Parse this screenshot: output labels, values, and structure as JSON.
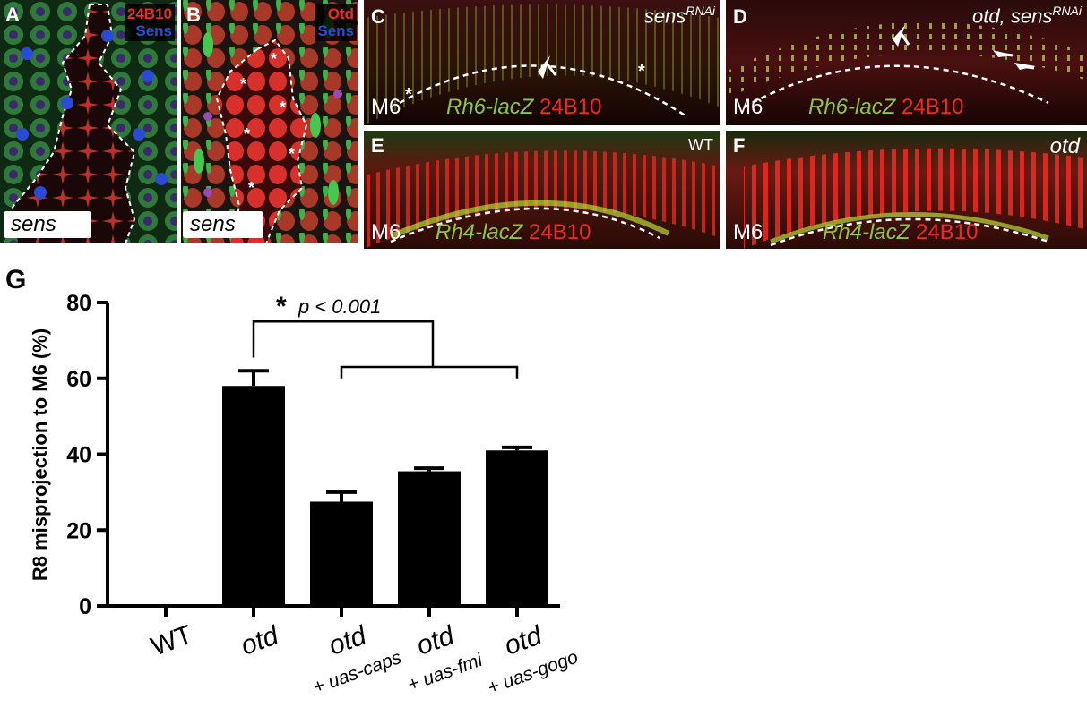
{
  "panels": {
    "A": {
      "letter": "A",
      "stain_red": "24B10",
      "stain_blue": "Sens",
      "clone": "sens"
    },
    "B": {
      "letter": "B",
      "stain_red": "Otd",
      "stain_blue": "Sens",
      "clone": "sens",
      "marker": "*"
    },
    "C": {
      "letter": "C",
      "title": "sens",
      "title_sup": "RNAi",
      "layer": "M6",
      "reporter_gene": "Rh6-lacZ",
      "reporter_ab": "24B10"
    },
    "D": {
      "letter": "D",
      "title": "otd, sens",
      "title_sup": "RNAi",
      "layer": "M6",
      "reporter_gene": "Rh6-lacZ",
      "reporter_ab": "24B10"
    },
    "E": {
      "letter": "E",
      "title": "WT",
      "layer": "M6",
      "reporter_gene": "Rh4-lacZ",
      "reporter_ab": "24B10"
    },
    "F": {
      "letter": "F",
      "title": "otd",
      "layer": "M6",
      "reporter_gene": "Rh4-lacZ",
      "reporter_ab": "24B10"
    }
  },
  "colors": {
    "red": "#ee2a24",
    "green": "#8dc63f",
    "blue": "#2b4bd6"
  },
  "chart_data": {
    "panel_letter": "G",
    "type": "bar",
    "ylabel": "R8 misprojection to M6 (%)",
    "ylim": [
      0,
      80
    ],
    "yticks": [
      0,
      20,
      40,
      60,
      80
    ],
    "categories": [
      {
        "main": "WT",
        "sub": ""
      },
      {
        "main": "otd",
        "sub": ""
      },
      {
        "main": "otd",
        "sub": "+ uas-caps"
      },
      {
        "main": "otd",
        "sub": "+ uas-fmi"
      },
      {
        "main": "otd",
        "sub": "+ uas-gogo"
      }
    ],
    "values": [
      0,
      58,
      27.5,
      35.5,
      41
    ],
    "errors": [
      0,
      4,
      2.5,
      0.8,
      0.8
    ],
    "significance": {
      "star": "*",
      "text": "p < 0.001"
    }
  }
}
